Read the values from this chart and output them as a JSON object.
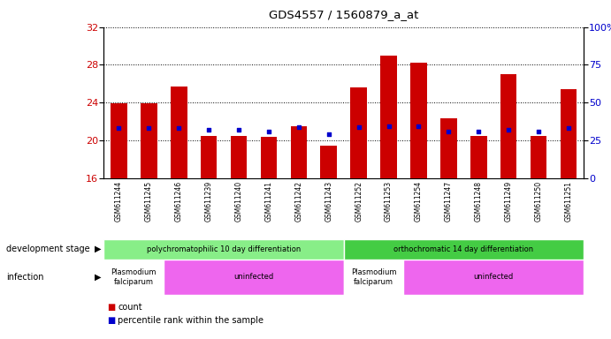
{
  "title": "GDS4557 / 1560879_a_at",
  "samples": [
    "GSM611244",
    "GSM611245",
    "GSM611246",
    "GSM611239",
    "GSM611240",
    "GSM611241",
    "GSM611242",
    "GSM611243",
    "GSM611252",
    "GSM611253",
    "GSM611254",
    "GSM611247",
    "GSM611248",
    "GSM611249",
    "GSM611250",
    "GSM611251"
  ],
  "count_values": [
    23.9,
    23.9,
    25.7,
    20.5,
    20.5,
    20.4,
    21.5,
    19.4,
    25.6,
    29.0,
    28.2,
    22.3,
    20.5,
    27.0,
    20.5,
    25.4
  ],
  "percentile_values": [
    21.3,
    21.3,
    21.3,
    21.1,
    21.1,
    20.9,
    21.4,
    20.6,
    21.4,
    21.5,
    21.5,
    20.9,
    20.9,
    21.1,
    20.9,
    21.3
  ],
  "ylim_left": [
    16,
    32
  ],
  "ylim_right": [
    0,
    100
  ],
  "yticks_left": [
    16,
    20,
    24,
    28,
    32
  ],
  "yticks_right": [
    0,
    25,
    50,
    75,
    100
  ],
  "bar_color": "#cc0000",
  "dot_color": "#0000cc",
  "left_yaxis_color": "#cc0000",
  "right_yaxis_color": "#0000cc",
  "tick_bg": "#d8d8d8",
  "bar_width": 0.55,
  "dev_groups": [
    {
      "label": "polychromatophilic 10 day differentiation",
      "start": 0,
      "end": 7,
      "color": "#88ee88"
    },
    {
      "label": "orthochromatic 14 day differentiation",
      "start": 8,
      "end": 15,
      "color": "#44cc44"
    }
  ],
  "inf_groups": [
    {
      "label": "Plasmodium\nfalciparum",
      "start": 0,
      "end": 1,
      "color": "#ffffff"
    },
    {
      "label": "uninfected",
      "start": 2,
      "end": 7,
      "color": "#ee66ee"
    },
    {
      "label": "Plasmodium\nfalciparum",
      "start": 8,
      "end": 9,
      "color": "#ffffff"
    },
    {
      "label": "uninfected",
      "start": 10,
      "end": 15,
      "color": "#ee66ee"
    }
  ]
}
